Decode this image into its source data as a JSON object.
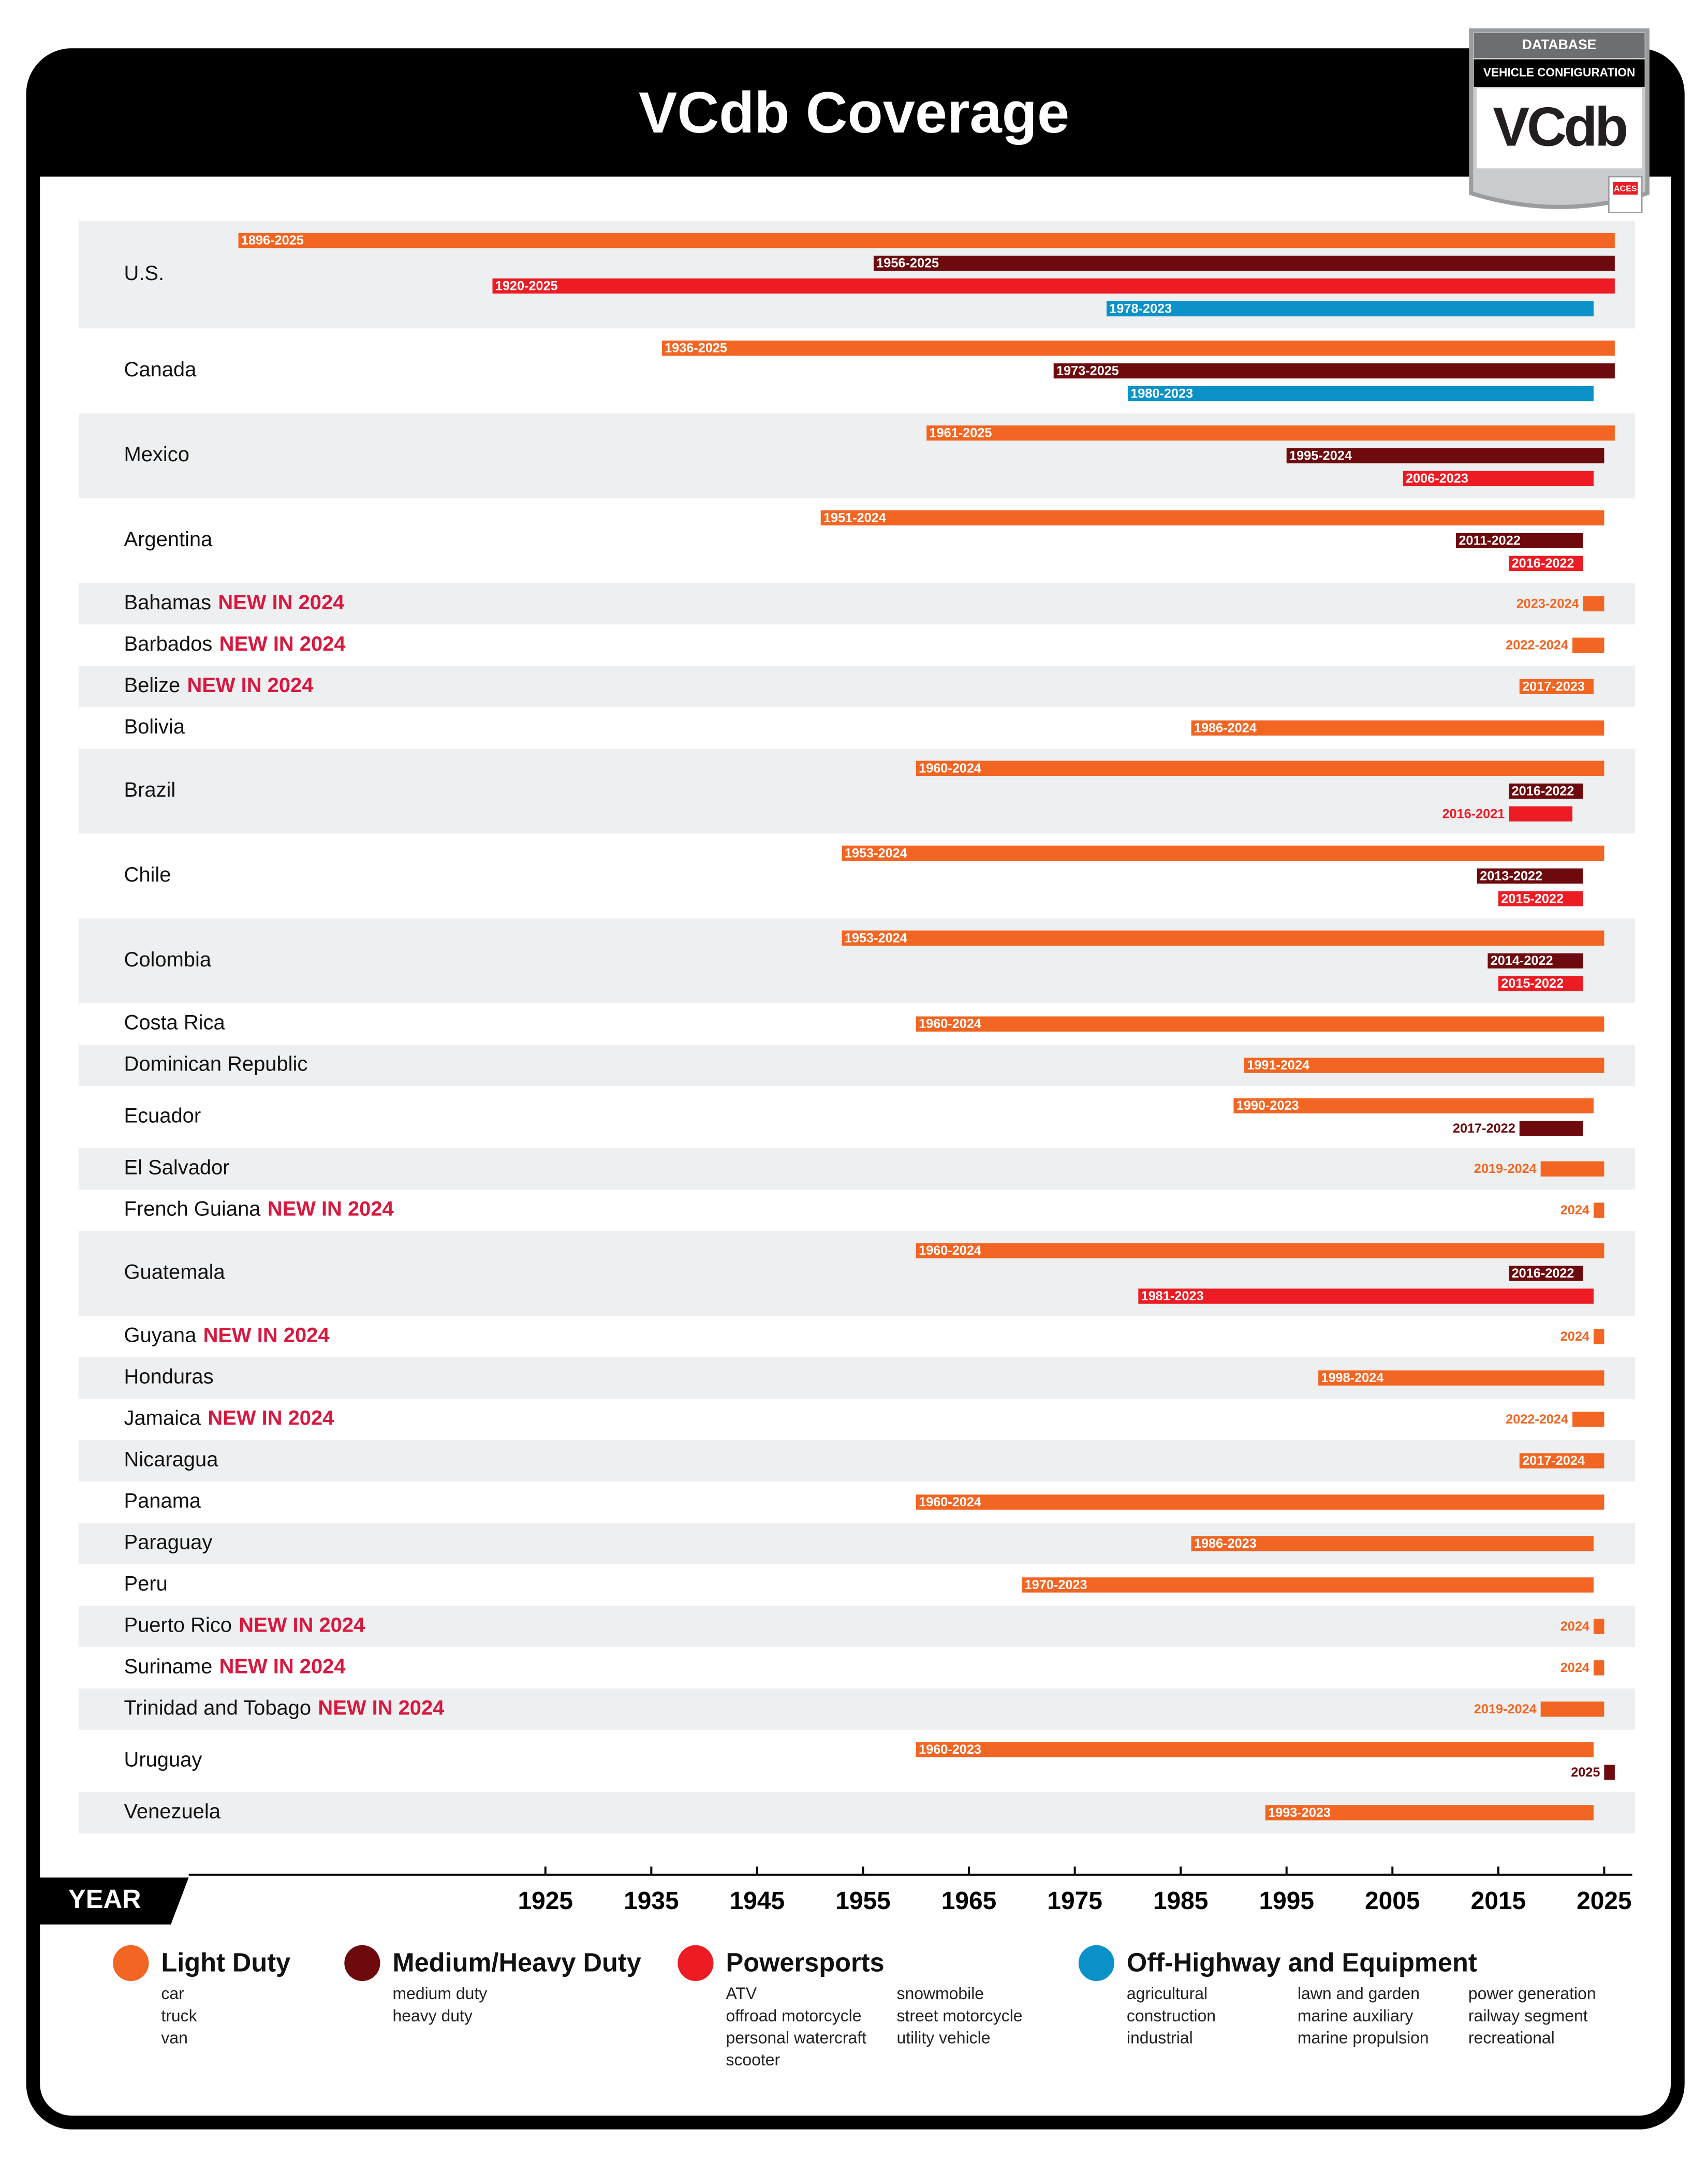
{
  "logo": {
    "top": "DATABASE",
    "middle": "VEHICLE CONFIGURATION",
    "mark": "VCdb",
    "badge": "ACES"
  },
  "chart_data": {
    "type": "range",
    "title": "VCdb Coverage",
    "xlabel": "YEAR",
    "xlim": [
      1893,
      2027
    ],
    "xticks": [
      1925,
      1935,
      1945,
      1955,
      1965,
      1975,
      1985,
      1995,
      2005,
      2015,
      2025
    ],
    "grid": false,
    "categories": [
      "U.S.",
      "Canada",
      "Mexico",
      "Argentina",
      "Bahamas",
      "Barbados",
      "Belize",
      "Bolivia",
      "Brazil",
      "Chile",
      "Colombia",
      "Costa Rica",
      "Dominican Republic",
      "Ecuador",
      "El Salvador",
      "French Guiana",
      "Guatemala",
      "Guyana",
      "Honduras",
      "Jamaica",
      "Nicaragua",
      "Panama",
      "Paraguay",
      "Peru",
      "Puerto Rico",
      "Suriname",
      "Trinidad and Tobago",
      "Uruguay",
      "Venezuela"
    ],
    "category_notes": [
      null,
      null,
      null,
      null,
      "NEW IN 2024",
      "NEW IN 2024",
      "NEW IN 2024",
      null,
      null,
      null,
      null,
      null,
      null,
      null,
      null,
      "NEW IN 2024",
      null,
      "NEW IN 2024",
      null,
      "NEW IN 2024",
      null,
      null,
      null,
      null,
      "NEW IN 2024",
      "NEW IN 2024",
      "NEW IN 2024",
      null,
      null
    ],
    "series": [
      {
        "name": "Light Duty",
        "color": "#f26522",
        "examples": [
          "car",
          "truck",
          "van"
        ],
        "values": [
          [
            1896,
            2025
          ],
          [
            1936,
            2025
          ],
          [
            1961,
            2025
          ],
          [
            1951,
            2024
          ],
          [
            2023,
            2024
          ],
          [
            2022,
            2024
          ],
          [
            2017,
            2023
          ],
          [
            1986,
            2024
          ],
          [
            1960,
            2024
          ],
          [
            1953,
            2024
          ],
          [
            1953,
            2024
          ],
          [
            1960,
            2024
          ],
          [
            1991,
            2024
          ],
          [
            1990,
            2023
          ],
          [
            2019,
            2024
          ],
          [
            2024,
            2024
          ],
          [
            1960,
            2024
          ],
          [
            2024,
            2024
          ],
          [
            1998,
            2024
          ],
          [
            2022,
            2024
          ],
          [
            2017,
            2024
          ],
          [
            1960,
            2024
          ],
          [
            1986,
            2023
          ],
          [
            1970,
            2023
          ],
          [
            2024,
            2024
          ],
          [
            2024,
            2024
          ],
          [
            2019,
            2024
          ],
          [
            1960,
            2023
          ],
          [
            1993,
            2023
          ]
        ],
        "value_labels": [
          "1896-2025",
          "1936-2025",
          "1961-2025",
          "1951-2024",
          "2023-2024",
          "2022-2024",
          "2017-2023",
          "1986-2024",
          "1960-2024",
          "1953-2024",
          "1953-2024",
          "1960-2024",
          "1991-2024",
          "1990-2023",
          "2019-2024",
          "2024",
          "1960-2024",
          "2024",
          "1998-2024",
          "2022-2024",
          "2017-2024",
          "1960-2024",
          "1986-2023",
          "1970-2023",
          "2024",
          "2024",
          "2019-2024",
          "1960-2023",
          "1993-2023"
        ]
      },
      {
        "name": "Medium/Heavy Duty",
        "color": "#6d0a0e",
        "examples": [
          "medium duty",
          "heavy duty"
        ],
        "values": [
          [
            1956,
            2025
          ],
          [
            1973,
            2025
          ],
          [
            1995,
            2024
          ],
          [
            2011,
            2022
          ],
          null,
          null,
          null,
          null,
          [
            2016,
            2022
          ],
          [
            2013,
            2022
          ],
          [
            2014,
            2022
          ],
          null,
          null,
          [
            2017,
            2022
          ],
          null,
          null,
          [
            2016,
            2022
          ],
          null,
          null,
          null,
          null,
          null,
          null,
          null,
          null,
          null,
          null,
          [
            2025,
            2025
          ],
          null
        ],
        "value_labels": [
          "1956-2025",
          "1973-2025",
          "1995-2024",
          "2011-2022",
          null,
          null,
          null,
          null,
          "2016-2022",
          "2013-2022",
          "2014-2022",
          null,
          null,
          "2017-2022",
          null,
          null,
          "2016-2022",
          null,
          null,
          null,
          null,
          null,
          null,
          null,
          null,
          null,
          null,
          "2025",
          null
        ]
      },
      {
        "name": "Powersports",
        "color": "#ed1c24",
        "examples": [
          "ATV",
          "offroad motorcycle",
          "personal watercraft",
          "scooter",
          "snowmobile",
          "street motorcycle",
          "utility vehicle"
        ],
        "values": [
          [
            1920,
            2025
          ],
          null,
          [
            2006,
            2023
          ],
          [
            2016,
            2022
          ],
          null,
          null,
          null,
          null,
          [
            2016,
            2021
          ],
          [
            2015,
            2022
          ],
          [
            2015,
            2022
          ],
          null,
          null,
          null,
          null,
          null,
          [
            1981,
            2023
          ],
          null,
          null,
          null,
          null,
          null,
          null,
          null,
          null,
          null,
          null,
          null,
          null
        ],
        "value_labels": [
          "1920-2025",
          null,
          "2006-2023",
          "2016-2022",
          null,
          null,
          null,
          null,
          "2016-2021",
          "2015-2022",
          "2015-2022",
          null,
          null,
          null,
          null,
          null,
          "1981-2023",
          null,
          null,
          null,
          null,
          null,
          null,
          null,
          null,
          null,
          null,
          null,
          null
        ]
      },
      {
        "name": "Off-Highway and Equipment",
        "color": "#0a92c8",
        "examples": [
          "agricultural",
          "construction",
          "industrial",
          "lawn and garden",
          "marine auxiliary",
          "marine propulsion",
          "power generation",
          "railway segment",
          "recreational"
        ],
        "values": [
          [
            1978,
            2023
          ],
          [
            1980,
            2023
          ],
          null,
          null,
          null,
          null,
          null,
          null,
          null,
          null,
          null,
          null,
          null,
          null,
          null,
          null,
          null,
          null,
          null,
          null,
          null,
          null,
          null,
          null,
          null,
          null,
          null,
          null,
          null
        ],
        "value_labels": [
          "1978-2023",
          "1980-2023",
          null,
          null,
          null,
          null,
          null,
          null,
          null,
          null,
          null,
          null,
          null,
          null,
          null,
          null,
          null,
          null,
          null,
          null,
          null,
          null,
          null,
          null,
          null,
          null,
          null,
          null,
          null
        ]
      }
    ]
  }
}
